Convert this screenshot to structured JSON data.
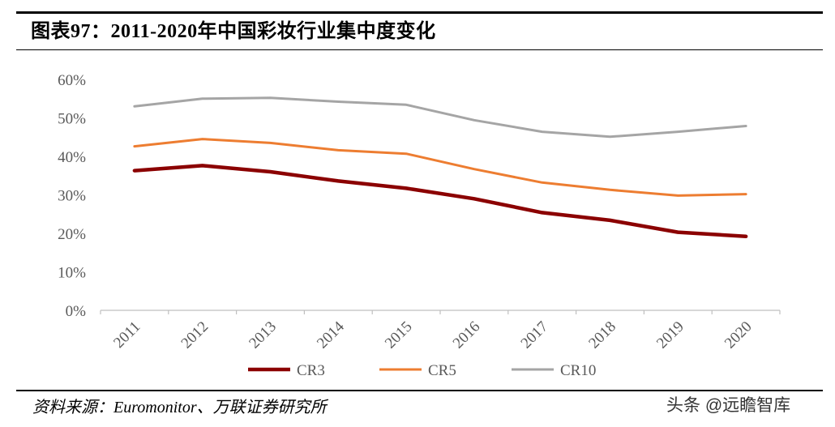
{
  "header": {
    "title": "图表97：2011-2020年中国彩妆行业集中度变化"
  },
  "chart_data": {
    "type": "line",
    "categories": [
      "2011",
      "2012",
      "2013",
      "2014",
      "2015",
      "2016",
      "2017",
      "2018",
      "2019",
      "2020"
    ],
    "y_ticks": [
      "0%",
      "10%",
      "20%",
      "30%",
      "40%",
      "50%",
      "60%"
    ],
    "ylim": [
      0,
      60
    ],
    "xlabel": "",
    "ylabel": "",
    "grid": false,
    "legend_position": "bottom",
    "series": [
      {
        "name": "CR3",
        "color": "#8B0000",
        "values": [
          36.3,
          37.6,
          36.0,
          33.6,
          31.7,
          29.0,
          25.4,
          23.4,
          20.3,
          19.2
        ]
      },
      {
        "name": "CR5",
        "color": "#ED7D31",
        "values": [
          42.6,
          44.5,
          43.5,
          41.6,
          40.7,
          36.7,
          33.2,
          31.3,
          29.8,
          30.2
        ]
      },
      {
        "name": "CR10",
        "color": "#A5A5A5",
        "values": [
          53.0,
          55.0,
          55.2,
          54.2,
          53.4,
          49.4,
          46.4,
          45.1,
          46.4,
          47.9
        ]
      }
    ]
  },
  "footer": {
    "source": "资料来源：Euromonitor、万联证券研究所",
    "watermark": "头条 @远瞻智库"
  }
}
